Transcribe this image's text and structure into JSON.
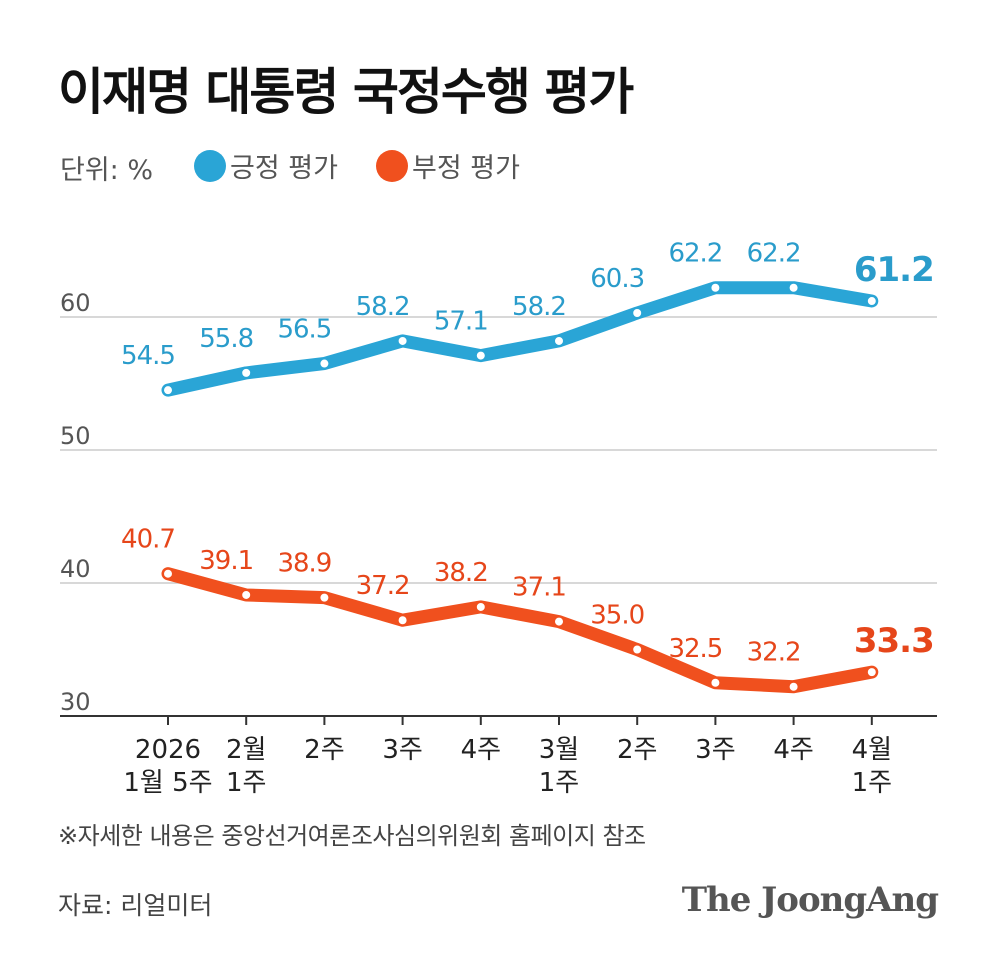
{
  "title": "이재명 대통령 국정수행 평가",
  "unit_label": "단위: %",
  "legend": [
    {
      "label": "긍정 평가",
      "color": "#2aa5d6"
    },
    {
      "label": "부정 평가",
      "color": "#f0501e"
    }
  ],
  "note": "※자세한 내용은 중앙선거여론조사심의위원회 홈페이지 참조",
  "source": "자료: 리얼미터",
  "brand": "The JoongAng",
  "chart_data": {
    "type": "line",
    "categories": [
      [
        "2026",
        "1월 5주"
      ],
      [
        "2월",
        "1주"
      ],
      [
        "2주"
      ],
      [
        "3주"
      ],
      [
        "4주"
      ],
      [
        "3월",
        "1주"
      ],
      [
        "2주"
      ],
      [
        "3주"
      ],
      [
        "4주"
      ],
      [
        "4월",
        "1주"
      ]
    ],
    "y_ticks": [
      30,
      40,
      50,
      60
    ],
    "ylim": [
      30,
      64
    ],
    "grid": true,
    "series": [
      {
        "name": "긍정 평가",
        "color": "#2aa5d6",
        "label_color": "#2a9ccb",
        "values": [
          54.5,
          55.8,
          56.5,
          58.2,
          57.1,
          58.2,
          60.3,
          62.2,
          62.2,
          61.2
        ],
        "labels": [
          "54.5",
          "55.8",
          "56.5",
          "58.2",
          "57.1",
          "58.2",
          "60.3",
          "62.2",
          "62.2",
          "61.2"
        ]
      },
      {
        "name": "부정 평가",
        "color": "#f0501e",
        "label_color": "#e6461a",
        "values": [
          40.7,
          39.1,
          38.9,
          37.2,
          38.2,
          37.1,
          35.0,
          32.5,
          32.2,
          33.3
        ],
        "labels": [
          "40.7",
          "39.1",
          "38.9",
          "37.2",
          "38.2",
          "37.1",
          "35.0",
          "32.5",
          "32.2",
          "33.3"
        ]
      }
    ]
  }
}
